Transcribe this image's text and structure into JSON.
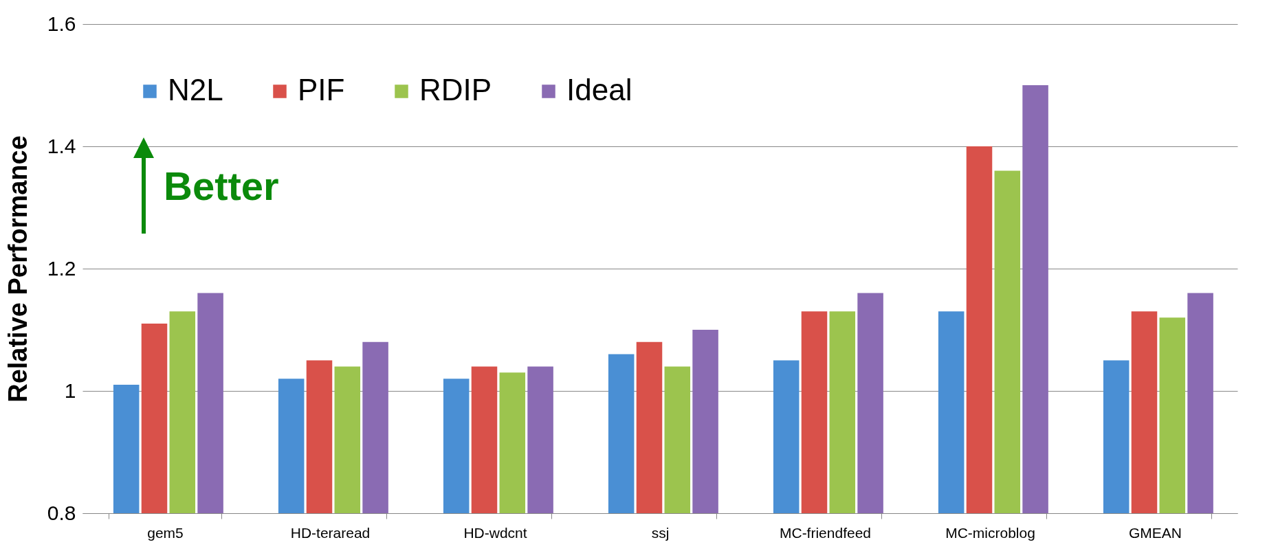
{
  "chart_data": {
    "type": "bar",
    "ylabel": "Relative Performance",
    "categories": [
      "gem5",
      "HD-teraread",
      "HD-wdcnt",
      "ssj",
      "MC-friendfeed",
      "MC-microblog",
      "GMEAN"
    ],
    "series": [
      {
        "name": "N2L",
        "color": "#4a8fd4",
        "values": [
          1.01,
          1.02,
          1.02,
          1.06,
          1.05,
          1.13,
          1.05
        ]
      },
      {
        "name": "PIF",
        "color": "#d9514a",
        "values": [
          1.11,
          1.05,
          1.04,
          1.08,
          1.13,
          1.4,
          1.13
        ]
      },
      {
        "name": "RDIP",
        "color": "#9cc44e",
        "values": [
          1.13,
          1.04,
          1.03,
          1.04,
          1.13,
          1.36,
          1.12
        ]
      },
      {
        "name": "Ideal",
        "color": "#8a6bb3",
        "values": [
          1.16,
          1.08,
          1.04,
          1.1,
          1.16,
          1.5,
          1.16
        ]
      }
    ],
    "ylim": [
      0.8,
      1.6
    ],
    "yticks": [
      0.8,
      1,
      1.2,
      1.4,
      1.6
    ],
    "grid": "y",
    "legend": "top left",
    "annotations": [
      "Better"
    ]
  }
}
